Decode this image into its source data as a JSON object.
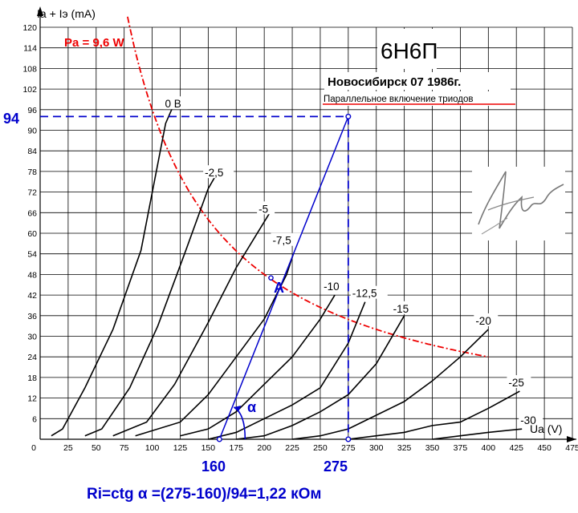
{
  "header": {
    "tube": "6Н6П",
    "origin": "Новосибирск 07 1986г.",
    "mode": "Параллельное включение триодов"
  },
  "chart_data": {
    "type": "line",
    "xlabel": "Ua (V)",
    "ylabel": "Ia + Iэ (mA)",
    "xlim": [
      0,
      475
    ],
    "ylim": [
      0,
      120
    ],
    "x_ticks": [
      0,
      25,
      50,
      75,
      100,
      125,
      150,
      175,
      200,
      225,
      250,
      275,
      300,
      325,
      350,
      375,
      400,
      425,
      450,
      475
    ],
    "y_ticks": [
      6,
      12,
      18,
      24,
      30,
      36,
      42,
      48,
      54,
      60,
      66,
      72,
      78,
      84,
      90,
      96,
      102,
      108,
      114,
      120
    ],
    "grid": true,
    "series": [
      {
        "name": "0 В",
        "points": [
          [
            10,
            1
          ],
          [
            20,
            3
          ],
          [
            40,
            15
          ],
          [
            65,
            32
          ],
          [
            90,
            55
          ],
          [
            112,
            92
          ],
          [
            120,
            98
          ]
        ]
      },
      {
        "name": "-2,5",
        "points": [
          [
            40,
            1
          ],
          [
            55,
            3
          ],
          [
            80,
            15
          ],
          [
            105,
            33
          ],
          [
            130,
            55
          ],
          [
            150,
            73
          ],
          [
            157,
            77
          ]
        ]
      },
      {
        "name": "-5",
        "points": [
          [
            65,
            1
          ],
          [
            95,
            5
          ],
          [
            120,
            16
          ],
          [
            150,
            34
          ],
          [
            175,
            50
          ],
          [
            205,
            66
          ]
        ]
      },
      {
        "name": "-7,5",
        "points": [
          [
            85,
            1
          ],
          [
            125,
            5
          ],
          [
            150,
            13
          ],
          [
            175,
            24
          ],
          [
            200,
            35
          ],
          [
            220,
            48
          ],
          [
            226,
            54
          ]
        ]
      },
      {
        "name": "-10",
        "points": [
          [
            125,
            1
          ],
          [
            150,
            3
          ],
          [
            175,
            8
          ],
          [
            200,
            16
          ],
          [
            225,
            24
          ],
          [
            250,
            35
          ],
          [
            263,
            42
          ]
        ]
      },
      {
        "name": "-12,5",
        "points": [
          [
            150,
            0
          ],
          [
            175,
            2
          ],
          [
            200,
            6
          ],
          [
            225,
            10
          ],
          [
            250,
            15
          ],
          [
            275,
            28
          ],
          [
            290,
            40
          ]
        ]
      },
      {
        "name": "-15",
        "points": [
          [
            175,
            0
          ],
          [
            200,
            1
          ],
          [
            225,
            4
          ],
          [
            250,
            8
          ],
          [
            275,
            13
          ],
          [
            300,
            22
          ],
          [
            325,
            36
          ]
        ]
      },
      {
        "name": "-20",
        "points": [
          [
            225,
            0
          ],
          [
            250,
            1
          ],
          [
            275,
            3
          ],
          [
            300,
            7
          ],
          [
            325,
            11
          ],
          [
            350,
            17
          ],
          [
            375,
            24
          ],
          [
            400,
            32
          ]
        ]
      },
      {
        "name": "-25",
        "points": [
          [
            275,
            0
          ],
          [
            300,
            1
          ],
          [
            325,
            2
          ],
          [
            350,
            4
          ],
          [
            375,
            5
          ],
          [
            400,
            9
          ],
          [
            428,
            14
          ]
        ]
      },
      {
        "name": "-30",
        "points": [
          [
            350,
            0
          ],
          [
            375,
            1
          ],
          [
            400,
            2
          ],
          [
            430,
            3
          ]
        ]
      }
    ],
    "power_limit": {
      "label": "Pa = 9,6 W",
      "color": "#ee0000",
      "x_from": 78,
      "x_to": 400
    },
    "construction": {
      "color": "#0000cc",
      "point_A": [
        206,
        47
      ],
      "point_A_label": "A",
      "line_from": [
        160,
        0
      ],
      "line_to": [
        275,
        94
      ],
      "ia_value": 94,
      "ia_label": "94",
      "ua_left": 160,
      "ua_left_label": "160",
      "ua_right": 275,
      "ua_right_label": "275",
      "alpha_label": "α"
    },
    "formula": "Ri=ctg α =(275-160)/94=1,22 кОм"
  }
}
